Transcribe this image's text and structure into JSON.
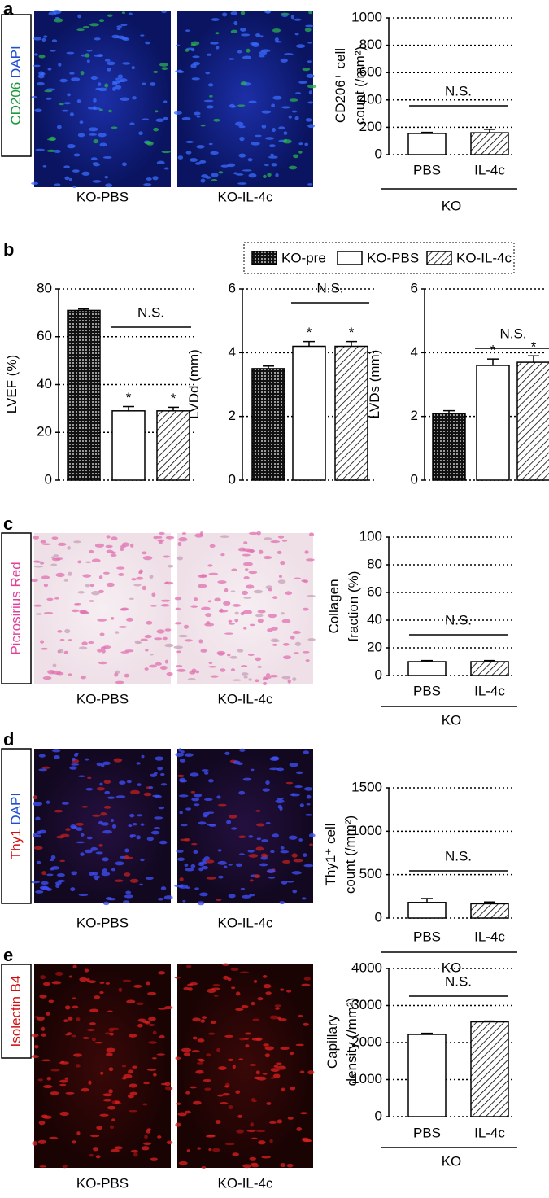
{
  "panels": [
    {
      "letter": "a",
      "stain": [
        {
          "text": "CD206",
          "color": "#1a9a3a"
        },
        {
          "text": "DAPI",
          "color": "#1f4fd0"
        }
      ],
      "images": [
        "KO-PBS",
        "KO-IL-4c"
      ]
    },
    {
      "letter": "b"
    },
    {
      "letter": "c",
      "stain": [
        {
          "text": "Picrosirius Red",
          "color": "#e0409a"
        }
      ],
      "images": [
        "KO-PBS",
        "KO-IL-4c"
      ]
    },
    {
      "letter": "d",
      "stain": [
        {
          "text": "Thy1",
          "color": "#d01010"
        },
        {
          "text": "DAPI",
          "color": "#1f4fd0"
        }
      ],
      "images": [
        "KO-PBS",
        "KO-IL-4c"
      ]
    },
    {
      "letter": "e",
      "stain": [
        {
          "text": "Isolectin B4",
          "color": "#d01010"
        }
      ],
      "images": [
        "KO-PBS",
        "KO-IL-4c"
      ]
    }
  ],
  "chart_data": [
    {
      "type": "bar",
      "ylabel": [
        "CD206⁺ cell",
        "count (/mm²)"
      ],
      "categories": [
        "PBS",
        "IL-4c"
      ],
      "values": [
        155,
        160
      ],
      "errors": [
        8,
        25
      ],
      "patterns": [
        "open",
        "hatched"
      ],
      "group": "KO",
      "annotation": "N.S.",
      "ylim": [
        0,
        1000
      ],
      "yticks": [
        0,
        200,
        400,
        600,
        800,
        1000
      ],
      "grid": true
    },
    {
      "type": "bar",
      "ylabel": [
        "LVEF (%)"
      ],
      "legend": "top",
      "series": [
        {
          "name": "KO-pre",
          "pattern": "dotted",
          "values": [
            71
          ],
          "errors": [
            0.6
          ]
        },
        {
          "name": "KO-PBS",
          "pattern": "open",
          "values": [
            29
          ],
          "errors": [
            1.8
          ],
          "label": "*"
        },
        {
          "name": "KO-IL-4c",
          "pattern": "hatched",
          "values": [
            29
          ],
          "errors": [
            1.5
          ],
          "label": "*"
        }
      ],
      "annotation": "N.S.",
      "ylim": [
        0,
        80
      ],
      "yticks": [
        0,
        20,
        40,
        60,
        80
      ],
      "grid": true
    },
    {
      "type": "bar",
      "ylabel": [
        "LVDd (mm)"
      ],
      "series": [
        {
          "pattern": "dotted",
          "values": [
            3.5
          ],
          "errors": [
            0.08
          ]
        },
        {
          "pattern": "open",
          "values": [
            4.2
          ],
          "errors": [
            0.15
          ],
          "label": "*"
        },
        {
          "pattern": "hatched",
          "values": [
            4.2
          ],
          "errors": [
            0.15
          ],
          "label": "*"
        }
      ],
      "annotation": "N.S.",
      "ylim": [
        0,
        6
      ],
      "yticks": [
        0,
        2,
        4,
        6
      ],
      "grid": true
    },
    {
      "type": "bar",
      "ylabel": [
        "LVDs (mm)"
      ],
      "series": [
        {
          "pattern": "dotted",
          "values": [
            2.1
          ],
          "errors": [
            0.08
          ]
        },
        {
          "pattern": "open",
          "values": [
            3.6
          ],
          "errors": [
            0.2
          ],
          "label": "*"
        },
        {
          "pattern": "hatched",
          "values": [
            3.7
          ],
          "errors": [
            0.2
          ],
          "label": "*"
        }
      ],
      "annotation": "N.S.",
      "ylim": [
        0,
        6
      ],
      "yticks": [
        0,
        2,
        4,
        6
      ],
      "grid": true
    },
    {
      "type": "bar",
      "ylabel": [
        "Collagen",
        "fraction (%)"
      ],
      "categories": [
        "PBS",
        "IL-4c"
      ],
      "values": [
        10,
        10
      ],
      "errors": [
        0.8,
        0.8
      ],
      "patterns": [
        "open",
        "hatched"
      ],
      "group": "KO",
      "annotation": "N.S.",
      "ylim": [
        0,
        100
      ],
      "yticks": [
        0,
        20,
        40,
        60,
        80,
        100
      ],
      "grid": true
    },
    {
      "type": "bar",
      "ylabel": [
        "Thy1⁺ cell",
        "count (/mm²)"
      ],
      "categories": [
        "PBS",
        "IL-4c"
      ],
      "values": [
        180,
        165
      ],
      "errors": [
        45,
        20
      ],
      "patterns": [
        "open",
        "hatched"
      ],
      "group": "KO",
      "annotation": "N.S.",
      "ylim": [
        0,
        1500
      ],
      "yticks": [
        0,
        500,
        1000,
        1500
      ],
      "grid": true
    },
    {
      "type": "bar",
      "ylabel": [
        "Capillary",
        "density (/mm²)"
      ],
      "categories": [
        "PBS",
        "IL-4c"
      ],
      "values": [
        2220,
        2560
      ],
      "errors": [
        30,
        20
      ],
      "patterns": [
        "open",
        "hatched"
      ],
      "group": "KO",
      "annotation": "N.S.",
      "ylim": [
        0,
        4000
      ],
      "yticks": [
        0,
        1000,
        2000,
        3000,
        4000
      ],
      "grid": true
    }
  ]
}
